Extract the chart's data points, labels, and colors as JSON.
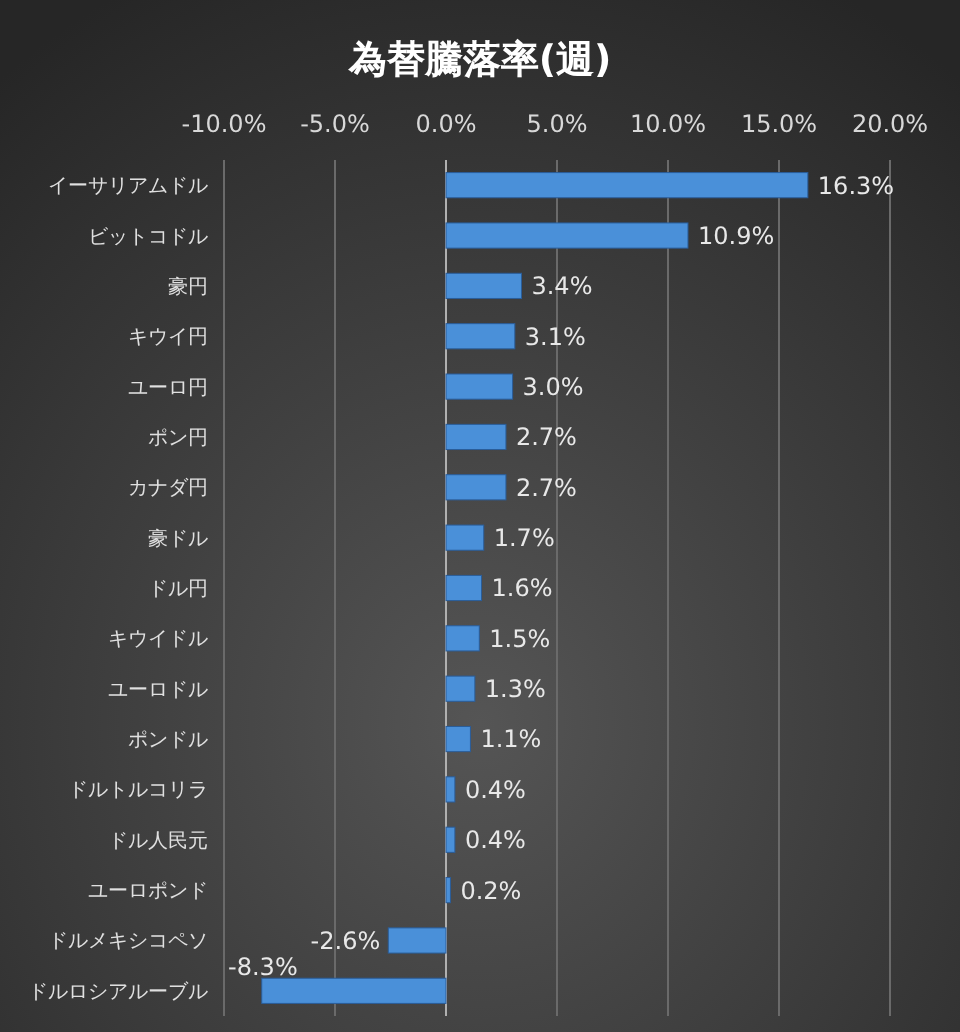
{
  "chart_data": {
    "type": "bar",
    "orientation": "horizontal",
    "title": "為替騰落率(週)",
    "categories": [
      "イーサリアムドル",
      "ビットコドル",
      "豪円",
      "キウイ円",
      "ユーロ円",
      "ポン円",
      "カナダ円",
      "豪ドル",
      "ドル円",
      "キウイドル",
      "ユーロドル",
      "ポンドル",
      "ドルトルコリラ",
      "ドル人民元",
      "ユーロポンド",
      "ドルメキシコペソ",
      "ドルロシアルーブル"
    ],
    "values": [
      16.3,
      10.9,
      3.4,
      3.1,
      3.0,
      2.7,
      2.7,
      1.7,
      1.6,
      1.5,
      1.3,
      1.1,
      0.4,
      0.4,
      0.2,
      -2.6,
      -8.3
    ],
    "value_labels": [
      "16.3%",
      "10.9%",
      "3.4%",
      "3.1%",
      "3.0%",
      "2.7%",
      "2.7%",
      "1.7%",
      "1.6%",
      "1.5%",
      "1.3%",
      "1.1%",
      "0.4%",
      "0.4%",
      "0.2%",
      "-2.6%",
      "-8.3%"
    ],
    "color": "#4a90d9",
    "xlim": [
      -10,
      20
    ],
    "xticks": [
      {
        "value": -10,
        "label": "-10.0%"
      },
      {
        "value": -5,
        "label": "-5.0%"
      },
      {
        "value": 0,
        "label": "0.0%"
      },
      {
        "value": 5,
        "label": "5.0%"
      },
      {
        "value": 10,
        "label": "10.0%"
      },
      {
        "value": 15,
        "label": "15.0%"
      },
      {
        "value": 20,
        "label": "20.0%"
      }
    ],
    "grid": "x"
  }
}
